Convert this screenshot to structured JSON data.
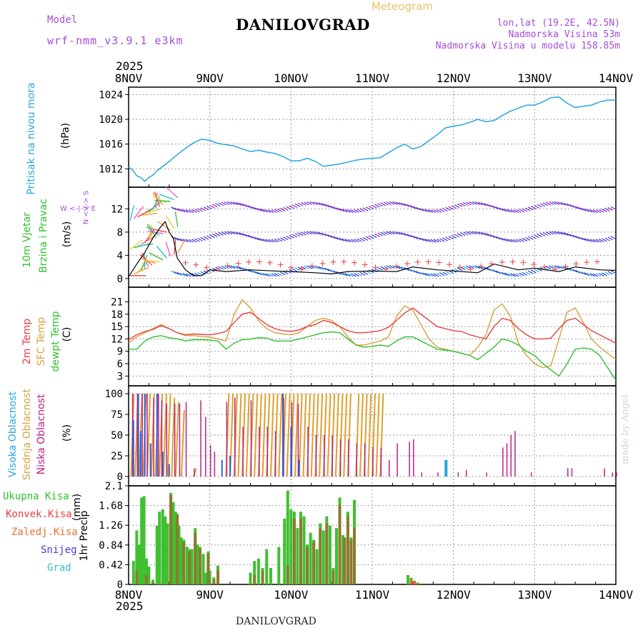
{
  "header": {
    "meteogram": "Meteogram",
    "model_label": "Model",
    "model_name": "wrf-nmm_v3.9.1 e3km",
    "title": "DANILOVGRAD",
    "location": "lon,lat (19.2E, 42.5N)",
    "elevation": "Nadmorska Visina 53m",
    "model_elevation": "Nadmorska Visina u modelu 158.85m"
  },
  "footer": {
    "station": "DANILOVGRAD",
    "credit": "made by Angel"
  },
  "time_axis": {
    "year": "2025",
    "labels": [
      "8NOV",
      "9NOV",
      "10NOV",
      "11NOV",
      "12NOV",
      "13NOV",
      "14NOV"
    ]
  },
  "colors": {
    "pressure": "#2aa5e0",
    "temp2m": "#e84040",
    "sfc": "#d8a040",
    "dew": "#30c030",
    "high": "#3060d8",
    "mid": "#dda030",
    "low": "#c02080",
    "precip_total": "#40c030",
    "precip_conv": "#a02a2a",
    "purple": "#a64dd9",
    "gust": "#a020c0",
    "wind_mid": "#3040d0"
  },
  "chart_data": [
    {
      "type": "line",
      "id": "pressure",
      "ylabel_1": "Pritisak na nivou mora",
      "ylabel_2": "(hPa)",
      "yticks": [
        1012,
        1016,
        1020,
        1024
      ],
      "ylim": [
        1009.5,
        1024.5
      ],
      "x_days": [
        0.0,
        0.05,
        0.1,
        0.15,
        0.2,
        0.25,
        0.3,
        0.35,
        0.4,
        0.5,
        0.6,
        0.7,
        0.8,
        0.9,
        1.0,
        1.1,
        1.2,
        1.3,
        1.4,
        1.5,
        1.6,
        1.7,
        1.8,
        1.9,
        2.0,
        2.1,
        2.2,
        2.3,
        2.4,
        2.5,
        2.6,
        2.7,
        2.8,
        2.9,
        3.0,
        3.1,
        3.2,
        3.3,
        3.4,
        3.5,
        3.6,
        3.7,
        3.8,
        3.9,
        4.0,
        4.1,
        4.2,
        4.3,
        4.4,
        4.5,
        4.6,
        4.7,
        4.8,
        4.9,
        5.0,
        5.1,
        5.2,
        5.3,
        5.4,
        5.5,
        5.6,
        5.7,
        5.8,
        5.9,
        6.0
      ],
      "values": [
        1012.3,
        1011.8,
        1010.9,
        1010.6,
        1010.0,
        1010.6,
        1011.0,
        1011.7,
        1012.2,
        1013.2,
        1014.3,
        1015.3,
        1016.2,
        1016.8,
        1016.6,
        1016.1,
        1015.9,
        1015.7,
        1015.2,
        1014.8,
        1015.0,
        1014.7,
        1014.5,
        1014.0,
        1013.3,
        1013.3,
        1013.7,
        1013.2,
        1012.4,
        1012.6,
        1012.8,
        1013.1,
        1013.4,
        1013.6,
        1013.7,
        1013.8,
        1014.6,
        1015.4,
        1016.0,
        1015.2,
        1015.6,
        1016.6,
        1017.5,
        1018.6,
        1018.9,
        1019.1,
        1019.5,
        1020.0,
        1019.6,
        1019.8,
        1020.6,
        1021.3,
        1021.8,
        1022.3,
        1022.3,
        1022.8,
        1023.5,
        1023.6,
        1022.6,
        1021.9,
        1022.1,
        1022.3,
        1022.8,
        1023.1,
        1023.1
      ]
    },
    {
      "type": "line",
      "id": "wind",
      "ylabel_1": "10m Vjetar",
      "ylabel_2": "Brzina i Pravac",
      "ylabel_3": "(m/s)",
      "compass": "W <-|-> E",
      "compass_v": "N <-|-> S",
      "yticks": [
        0,
        4,
        8,
        12
      ],
      "ylim": [
        -1,
        15
      ],
      "x_days": [
        0.0,
        0.1,
        0.2,
        0.3,
        0.4,
        0.45,
        0.5,
        0.55,
        0.6,
        0.7,
        0.8,
        0.9,
        1.0,
        1.2,
        1.5,
        1.8,
        2.0,
        2.3,
        2.5,
        2.7,
        3.0,
        3.3,
        3.5,
        3.8,
        4.0,
        4.3,
        4.5,
        4.8,
        5.0,
        5.3,
        5.5,
        5.8,
        6.0
      ],
      "speed": [
        0.3,
        2.5,
        4.5,
        7.0,
        9.0,
        9.8,
        8.0,
        7.0,
        3.5,
        1.5,
        0.5,
        0.5,
        1.5,
        1.2,
        1.5,
        1.3,
        1.2,
        1.0,
        0.8,
        1.2,
        1.3,
        1.2,
        2.0,
        1.5,
        1.3,
        1.0,
        2.5,
        1.5,
        1.8,
        1.2,
        2.0,
        1.5,
        1.4
      ],
      "gust_level": 12.3,
      "mid_level": 7.2,
      "low_level": 1.3
    },
    {
      "type": "line",
      "id": "temperature",
      "ylabel_1": "2m Temp",
      "ylabel_2": "SFC Temp",
      "ylabel_3": "dewpt Temp",
      "ylabel_4": "(C)",
      "yticks": [
        3,
        6,
        9,
        12,
        15,
        18,
        21
      ],
      "ylim": [
        1.5,
        23.5
      ],
      "x_days": [
        0.0,
        0.1,
        0.2,
        0.3,
        0.4,
        0.5,
        0.6,
        0.7,
        0.8,
        0.9,
        1.0,
        1.1,
        1.2,
        1.3,
        1.4,
        1.5,
        1.6,
        1.7,
        1.8,
        1.9,
        2.0,
        2.1,
        2.2,
        2.3,
        2.4,
        2.5,
        2.6,
        2.7,
        2.8,
        2.9,
        3.0,
        3.1,
        3.2,
        3.3,
        3.4,
        3.5,
        3.6,
        3.7,
        3.8,
        3.9,
        4.0,
        4.1,
        4.2,
        4.3,
        4.4,
        4.5,
        4.6,
        4.7,
        4.8,
        4.9,
        5.0,
        5.1,
        5.2,
        5.3,
        5.4,
        5.5,
        5.6,
        5.7,
        5.8,
        5.9,
        6.0
      ],
      "temp2m": [
        11.8,
        13.0,
        13.8,
        14.3,
        15.2,
        14.5,
        13.5,
        13.0,
        13.2,
        13.1,
        13.0,
        13.3,
        13.8,
        16.0,
        18.0,
        18.5,
        17.0,
        15.5,
        14.5,
        14.0,
        13.8,
        14.2,
        15.0,
        15.5,
        16.5,
        16.0,
        15.0,
        14.0,
        13.5,
        13.5,
        13.7,
        14.0,
        14.8,
        16.5,
        18.3,
        19.5,
        18.0,
        16.5,
        15.0,
        14.5,
        14.0,
        13.8,
        13.0,
        12.5,
        12.0,
        15.0,
        17.0,
        16.5,
        14.5,
        13.0,
        12.0,
        12.0,
        12.2,
        14.5,
        16.5,
        17.0,
        15.5,
        14.0,
        13.0,
        12.0,
        11.0
      ],
      "sfc": [
        11.0,
        12.5,
        13.5,
        14.5,
        15.5,
        14.5,
        13.5,
        12.8,
        12.8,
        12.6,
        12.5,
        12.0,
        11.5,
        18.0,
        21.5,
        19.5,
        16.5,
        14.5,
        13.5,
        13.2,
        13.0,
        13.5,
        15.0,
        16.5,
        17.0,
        16.5,
        15.0,
        12.5,
        10.5,
        10.5,
        11.0,
        11.5,
        12.5,
        17.5,
        20.0,
        19.0,
        15.5,
        12.0,
        10.0,
        9.5,
        9.0,
        8.5,
        8.0,
        10.0,
        13.0,
        19.0,
        20.5,
        17.5,
        11.0,
        8.0,
        6.0,
        5.0,
        5.5,
        12.0,
        18.5,
        19.5,
        16.0,
        12.0,
        10.0,
        8.5,
        7.0
      ],
      "dewpt": [
        9.5,
        9.5,
        11.5,
        12.5,
        12.8,
        12.3,
        12.0,
        11.5,
        11.8,
        11.8,
        11.7,
        11.5,
        9.5,
        11.0,
        11.8,
        12.0,
        12.3,
        12.2,
        11.5,
        11.5,
        11.5,
        12.0,
        12.5,
        13.0,
        13.5,
        13.7,
        13.5,
        12.0,
        10.5,
        10.0,
        10.2,
        10.5,
        10.2,
        11.5,
        12.5,
        12.5,
        11.5,
        10.5,
        9.5,
        9.3,
        9.0,
        8.5,
        8.0,
        7.0,
        8.5,
        10.0,
        12.0,
        11.5,
        10.5,
        9.0,
        8.0,
        6.0,
        4.5,
        3.0,
        6.0,
        9.5,
        9.8,
        9.5,
        8.0,
        5.0,
        2.0
      ]
    },
    {
      "type": "bar",
      "id": "clouds",
      "ylabel_1": "Visoka Oblacnost",
      "ylabel_2": "Srednja Oblacnost",
      "ylabel_3": "Niska Oblacnost",
      "ylabel_4": "(%)",
      "yticks": [
        0,
        25,
        50,
        75,
        100
      ],
      "ylim": [
        0,
        100
      ],
      "high": [
        [
          0.06,
          68
        ],
        [
          0.12,
          100
        ],
        [
          0.15,
          55
        ],
        [
          0.2,
          100
        ],
        [
          0.27,
          40
        ],
        [
          0.35,
          100
        ],
        [
          0.42,
          30
        ],
        [
          0.5,
          15
        ],
        [
          1.15,
          20
        ],
        [
          1.25,
          25
        ],
        [
          1.9,
          100
        ],
        [
          2.0,
          60
        ],
        [
          2.1,
          20
        ],
        [
          3.9,
          20
        ]
      ],
      "mid": [
        [
          0.03,
          100
        ],
        [
          0.08,
          100
        ],
        [
          0.13,
          100
        ],
        [
          0.18,
          100
        ],
        [
          0.23,
          100
        ],
        [
          0.28,
          100
        ],
        [
          0.33,
          100
        ],
        [
          0.38,
          100
        ],
        [
          0.43,
          100
        ],
        [
          0.48,
          100
        ],
        [
          0.53,
          95
        ],
        [
          0.58,
          90
        ],
        [
          0.65,
          80
        ],
        [
          0.8,
          10
        ],
        [
          1.2,
          100
        ],
        [
          1.25,
          100
        ],
        [
          1.3,
          100
        ],
        [
          1.35,
          100
        ],
        [
          1.4,
          100
        ],
        [
          1.45,
          100
        ],
        [
          1.5,
          100
        ],
        [
          1.55,
          100
        ],
        [
          1.6,
          100
        ],
        [
          1.65,
          100
        ],
        [
          1.7,
          100
        ],
        [
          1.75,
          100
        ],
        [
          1.8,
          100
        ],
        [
          1.85,
          100
        ],
        [
          1.9,
          100
        ],
        [
          1.95,
          100
        ],
        [
          2.0,
          100
        ],
        [
          2.05,
          100
        ],
        [
          2.1,
          100
        ],
        [
          2.15,
          100
        ],
        [
          2.2,
          100
        ],
        [
          2.25,
          100
        ],
        [
          2.3,
          100
        ],
        [
          2.35,
          100
        ],
        [
          2.4,
          100
        ],
        [
          2.45,
          100
        ],
        [
          2.5,
          100
        ],
        [
          2.55,
          100
        ],
        [
          2.6,
          100
        ],
        [
          2.65,
          100
        ],
        [
          2.7,
          100
        ],
        [
          2.8,
          100
        ],
        [
          2.85,
          100
        ],
        [
          2.9,
          100
        ],
        [
          2.95,
          100
        ],
        [
          3.0,
          100
        ],
        [
          3.05,
          100
        ],
        [
          3.1,
          100
        ]
      ],
      "low": [
        [
          0.04,
          100
        ],
        [
          0.1,
          100
        ],
        [
          0.16,
          100
        ],
        [
          0.22,
          100
        ],
        [
          0.3,
          95
        ],
        [
          0.36,
          100
        ],
        [
          0.4,
          92
        ],
        [
          0.46,
          88
        ],
        [
          0.56,
          88
        ],
        [
          0.62,
          88
        ],
        [
          0.7,
          90
        ],
        [
          0.8,
          10
        ],
        [
          0.88,
          92
        ],
        [
          0.94,
          72
        ],
        [
          1.0,
          38
        ],
        [
          1.05,
          30
        ],
        [
          1.2,
          90
        ],
        [
          1.3,
          95
        ],
        [
          1.4,
          60
        ],
        [
          1.5,
          92
        ],
        [
          1.6,
          60
        ],
        [
          1.7,
          60
        ],
        [
          1.8,
          55
        ],
        [
          1.9,
          95
        ],
        [
          2.0,
          90
        ],
        [
          2.08,
          88
        ],
        [
          2.2,
          60
        ],
        [
          2.3,
          50
        ],
        [
          2.4,
          50
        ],
        [
          2.5,
          50
        ],
        [
          2.6,
          45
        ],
        [
          2.7,
          45
        ],
        [
          2.8,
          40
        ],
        [
          2.9,
          40
        ],
        [
          3.0,
          35
        ],
        [
          3.1,
          35
        ],
        [
          3.2,
          20
        ],
        [
          3.3,
          40
        ],
        [
          3.45,
          42
        ],
        [
          3.5,
          45
        ],
        [
          3.6,
          5
        ],
        [
          3.8,
          5
        ],
        [
          4.05,
          5
        ],
        [
          4.15,
          8
        ],
        [
          4.4,
          5
        ],
        [
          4.6,
          35
        ],
        [
          4.65,
          40
        ],
        [
          4.7,
          50
        ],
        [
          4.75,
          55
        ],
        [
          4.95,
          5
        ],
        [
          5.4,
          10
        ],
        [
          5.45,
          10
        ],
        [
          5.85,
          10
        ],
        [
          5.95,
          5
        ],
        [
          6.0,
          5
        ]
      ]
    },
    {
      "type": "bar",
      "id": "precip",
      "ylabel_1": "1hr Precip",
      "ylabel_2": "(mm)",
      "legend": [
        "Ukupna Kisa",
        "Konvek.Kisa",
        "Zaledj.Kisa",
        "Snijeg",
        "Grad"
      ],
      "yticks": [
        0,
        0.42,
        0.84,
        1.26,
        1.68,
        2.1
      ],
      "ylim": [
        0,
        2.1
      ],
      "total": [
        [
          0.06,
          0.5
        ],
        [
          0.1,
          1.15
        ],
        [
          0.13,
          0.85
        ],
        [
          0.16,
          1.85
        ],
        [
          0.19,
          1.88
        ],
        [
          0.22,
          0.55
        ],
        [
          0.25,
          0.38
        ],
        [
          0.3,
          0.1
        ],
        [
          0.35,
          1.25
        ],
        [
          0.38,
          1.55
        ],
        [
          0.42,
          1.6
        ],
        [
          0.45,
          1.45
        ],
        [
          0.48,
          1.3
        ],
        [
          0.52,
          1.95
        ],
        [
          0.55,
          1.75
        ],
        [
          0.58,
          1.55
        ],
        [
          0.62,
          1.25
        ],
        [
          0.65,
          1.0
        ],
        [
          0.68,
          0.95
        ],
        [
          0.72,
          0.8
        ],
        [
          0.75,
          0.75
        ],
        [
          0.78,
          0.75
        ],
        [
          0.82,
          1.2
        ],
        [
          0.85,
          0.85
        ],
        [
          0.88,
          0.8
        ],
        [
          0.92,
          0.65
        ],
        [
          0.95,
          0.25
        ],
        [
          0.98,
          0.7
        ],
        [
          1.0,
          0.3
        ],
        [
          1.05,
          0.15
        ],
        [
          1.1,
          0.4
        ],
        [
          1.5,
          0.25
        ],
        [
          1.55,
          0.5
        ],
        [
          1.6,
          0.55
        ],
        [
          1.65,
          0.35
        ],
        [
          1.7,
          0.75
        ],
        [
          1.75,
          0.35
        ],
        [
          1.85,
          0.8
        ],
        [
          1.92,
          1.4
        ],
        [
          1.96,
          2.0
        ],
        [
          2.0,
          1.6
        ],
        [
          2.04,
          1.55
        ],
        [
          2.08,
          1.2
        ],
        [
          2.12,
          1.55
        ],
        [
          2.16,
          1.45
        ],
        [
          2.2,
          0.85
        ],
        [
          2.24,
          1.1
        ],
        [
          2.28,
          0.95
        ],
        [
          2.32,
          0.75
        ],
        [
          2.36,
          1.3
        ],
        [
          2.4,
          1.15
        ],
        [
          2.44,
          1.45
        ],
        [
          2.48,
          1.25
        ],
        [
          2.52,
          0.35
        ],
        [
          2.56,
          1.2
        ],
        [
          2.6,
          1.85
        ],
        [
          2.64,
          1.05
        ],
        [
          2.7,
          1.55
        ],
        [
          2.74,
          1.0
        ],
        [
          2.78,
          1.8
        ],
        [
          3.44,
          0.2
        ],
        [
          3.48,
          0.14
        ],
        [
          3.52,
          0.08
        ],
        [
          3.56,
          0.04
        ]
      ],
      "conv": [
        [
          0.1,
          0.3
        ],
        [
          0.22,
          0.2
        ],
        [
          0.3,
          0.05
        ],
        [
          0.52,
          1.9
        ],
        [
          0.6,
          1.5
        ],
        [
          0.68,
          0.9
        ],
        [
          0.75,
          0.7
        ],
        [
          0.82,
          1.1
        ],
        [
          0.88,
          0.75
        ],
        [
          0.98,
          0.65
        ],
        [
          1.05,
          0.1
        ],
        [
          1.1,
          0.3
        ],
        [
          1.55,
          0.2
        ],
        [
          1.65,
          0.3
        ],
        [
          1.96,
          0.4
        ],
        [
          2.04,
          1.4
        ],
        [
          2.12,
          1.4
        ],
        [
          2.2,
          0.8
        ],
        [
          2.28,
          0.9
        ],
        [
          2.36,
          1.2
        ],
        [
          2.44,
          1.3
        ],
        [
          2.52,
          0.3
        ],
        [
          2.6,
          1.7
        ],
        [
          2.66,
          1.0
        ],
        [
          2.7,
          1.45
        ],
        [
          2.74,
          0.95
        ],
        [
          2.78,
          1.2
        ],
        [
          3.48,
          0.1
        ],
        [
          3.52,
          0.06
        ]
      ]
    }
  ]
}
